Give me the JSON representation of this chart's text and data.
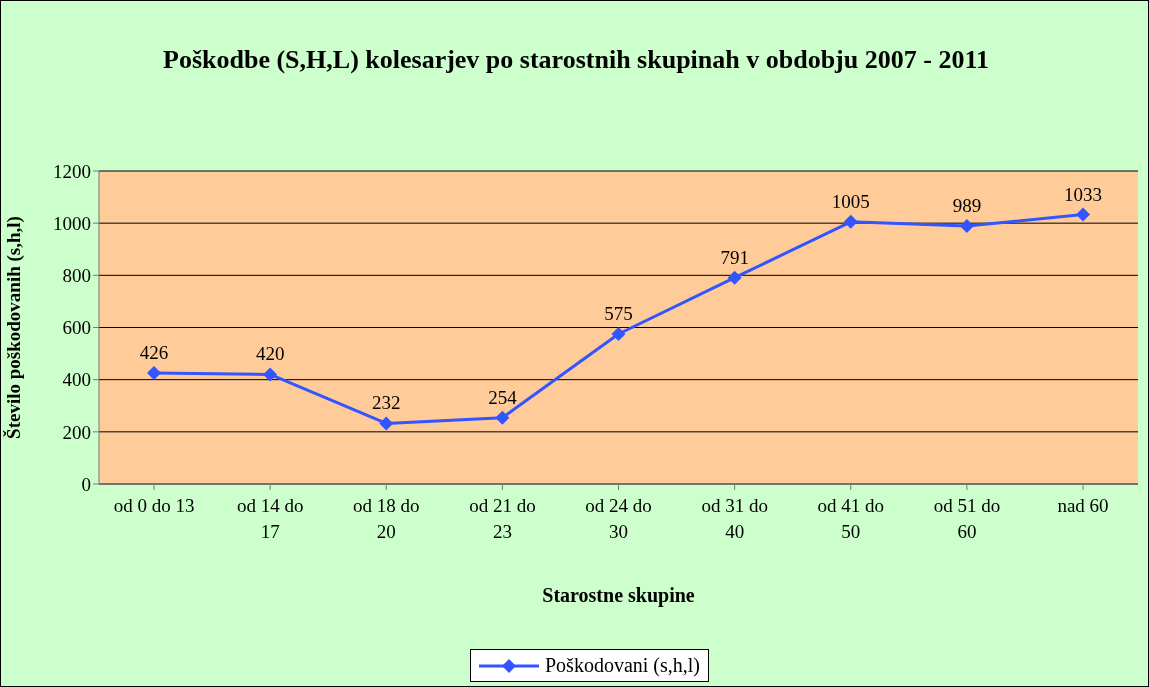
{
  "chart_data": {
    "type": "line",
    "title": "Poškodbe (S,H,L) kolesarjev po starostnih skupinah v obdobju 2007 - 2011",
    "xlabel": "Starostne skupine",
    "ylabel": "Število poškodovanih (s,h,l)",
    "categories": [
      "od 0 do 13",
      "od 14 do 17",
      "od 18 do 20",
      "od 21 do 23",
      "od 24 do 30",
      "od 31 do 40",
      "od 41 do 50",
      "od 51 do 60",
      "nad 60"
    ],
    "series": [
      {
        "name": "Poškodovani (s,h,l)",
        "color": "#3355ff",
        "values": [
          426,
          420,
          232,
          254,
          575,
          791,
          1005,
          989,
          1033
        ]
      }
    ],
    "ylim": [
      0,
      1200
    ],
    "yticks": [
      0,
      200,
      400,
      600,
      800,
      1000,
      1200
    ],
    "grid": "y",
    "legend": "bottom",
    "marker": "diamond",
    "line_style": "solid",
    "data_labels": true
  }
}
